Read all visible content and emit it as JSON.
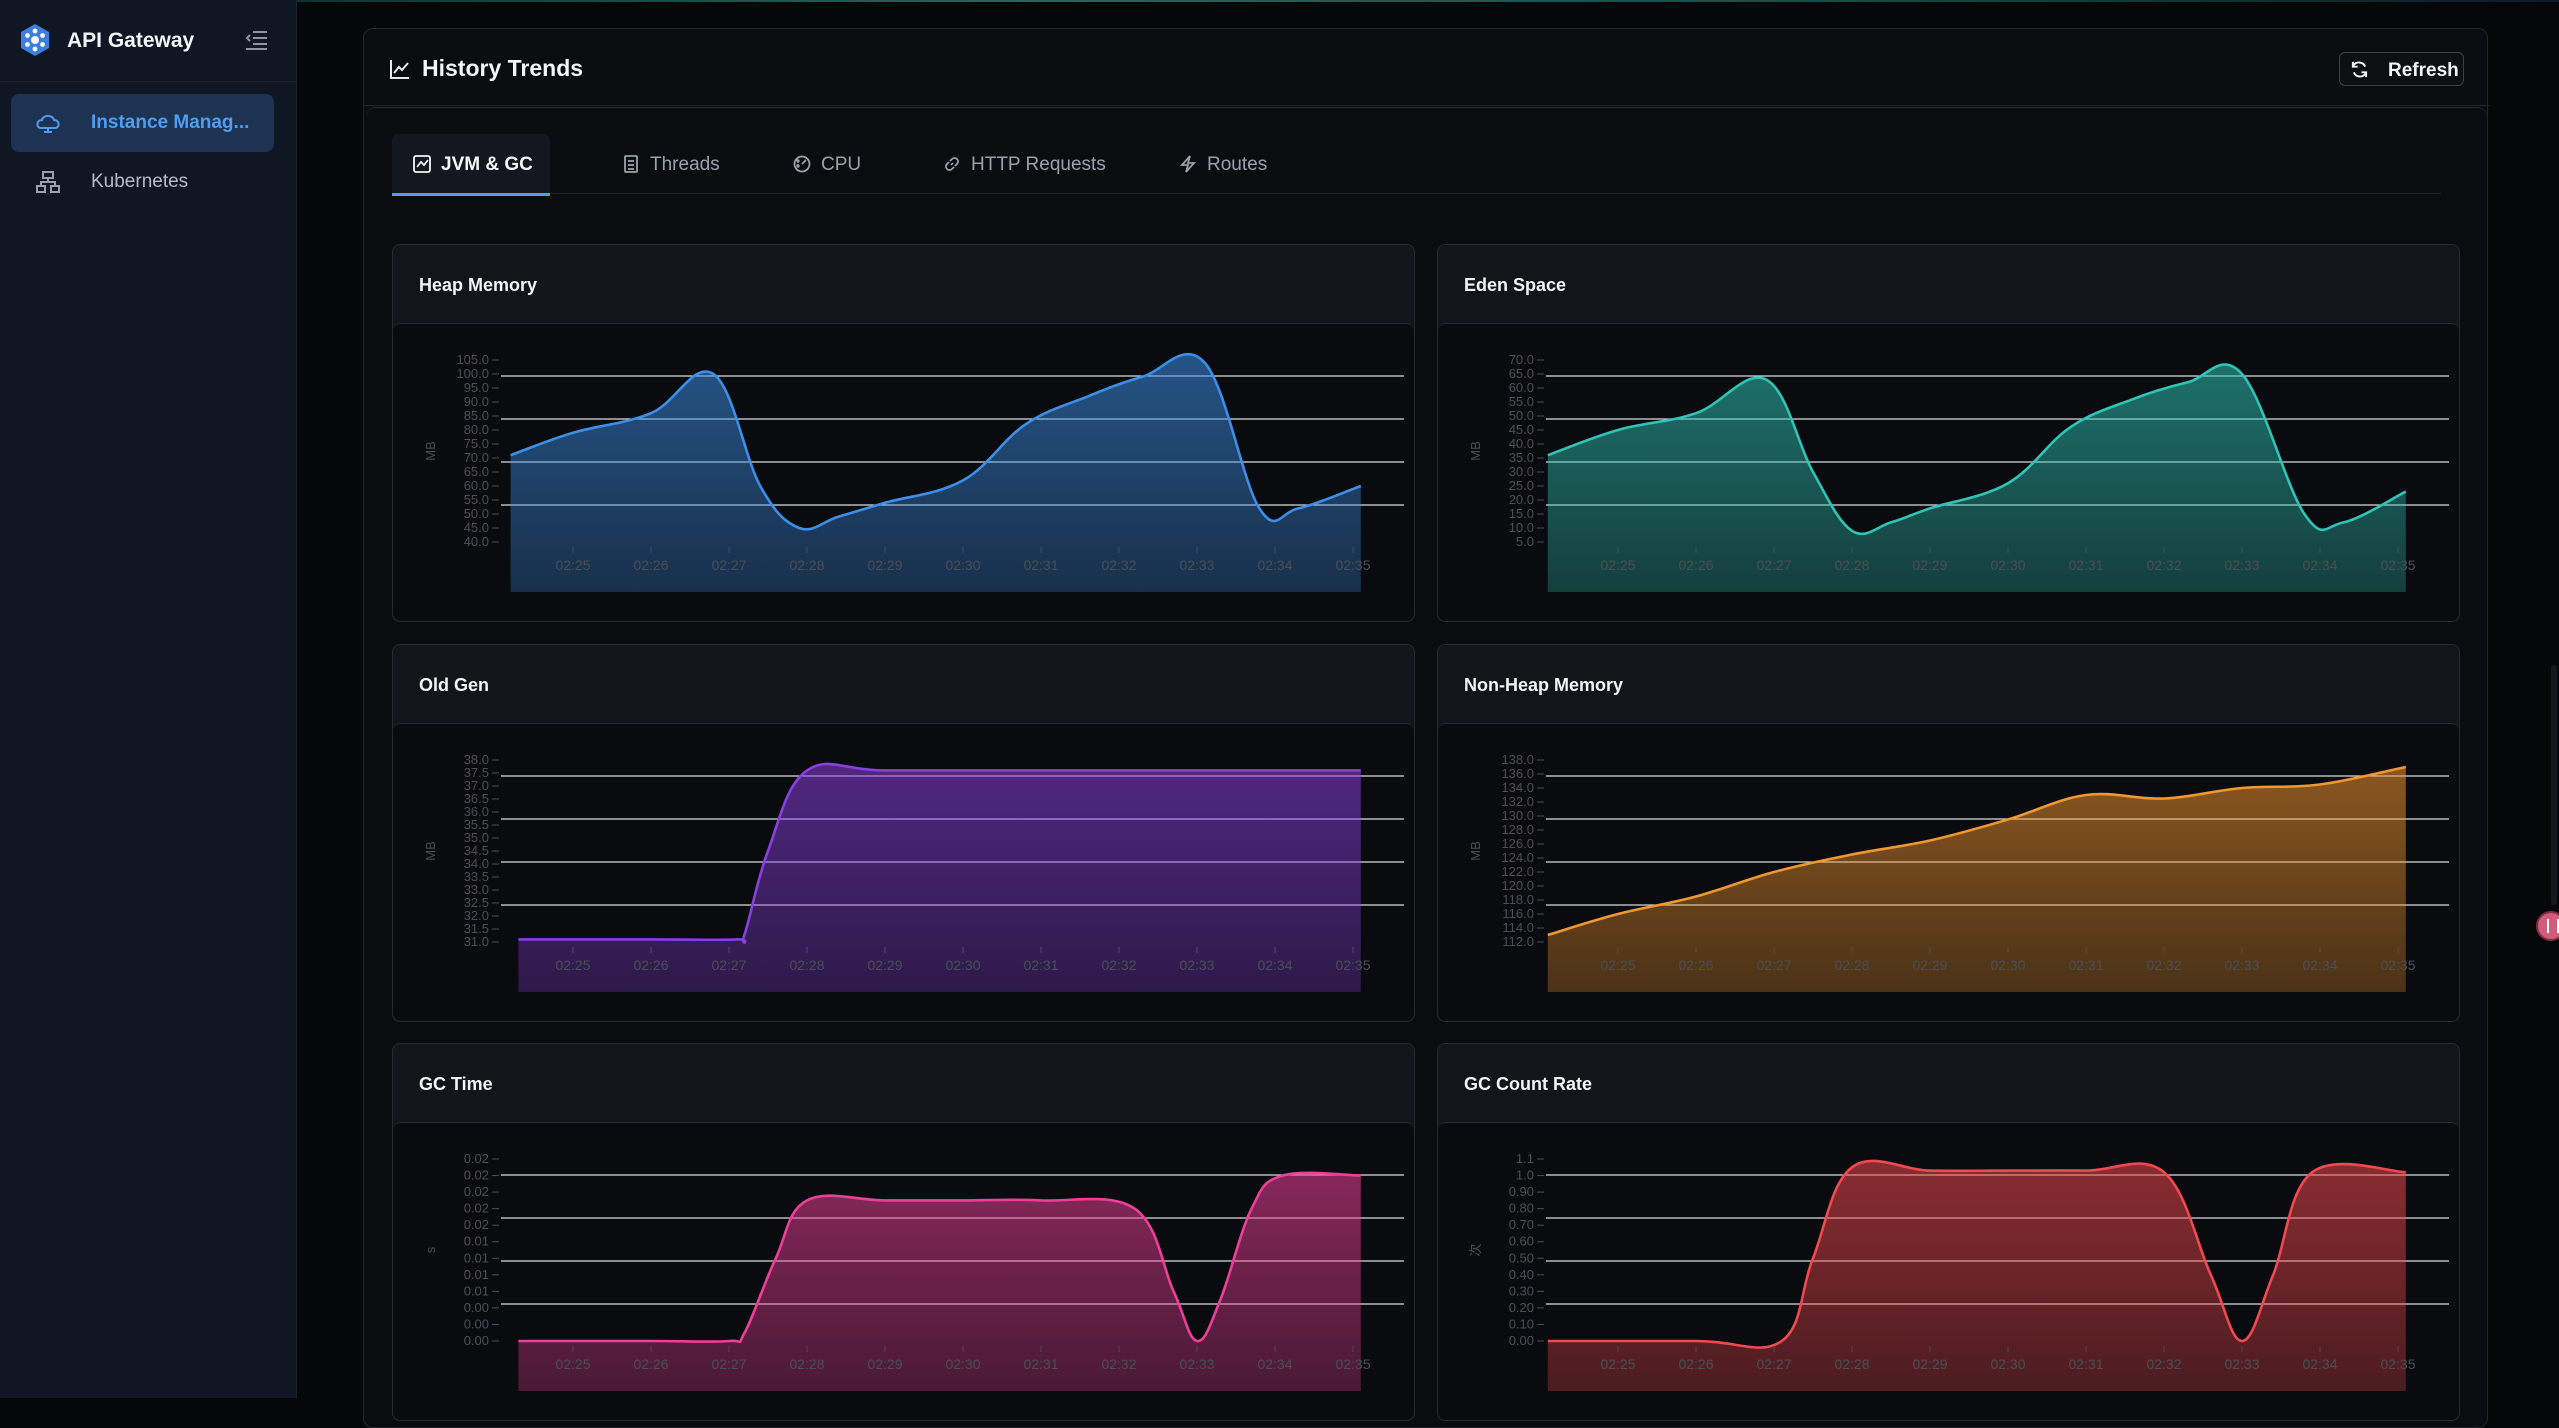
{
  "sidebar": {
    "brand_title": "API Gateway",
    "items": [
      {
        "label": "Instance Manag...",
        "icon": "cloud-icon",
        "active": true
      },
      {
        "label": "Kubernetes",
        "icon": "cluster-icon",
        "active": false
      }
    ]
  },
  "panel": {
    "title": "History Trends",
    "refresh_label": "Refresh",
    "tabs": [
      {
        "label": "JVM & GC",
        "icon": "chart-icon",
        "active": true
      },
      {
        "label": "Threads",
        "icon": "document-icon",
        "active": false
      },
      {
        "label": "CPU",
        "icon": "gauge-icon",
        "active": false
      },
      {
        "label": "HTTP Requests",
        "icon": "link-icon",
        "active": false
      },
      {
        "label": "Routes",
        "icon": "bolt-icon",
        "active": false
      }
    ]
  },
  "colors": {
    "accent": "#4f9cf2",
    "heap": "#3b8fe8",
    "eden": "#2ec4b6",
    "oldgen": "#8a3fe0",
    "nonheap": "#f2962e",
    "gctime": "#ee3f98",
    "gccount": "#f2484f"
  },
  "chart_data": [
    {
      "id": "heap",
      "title": "Heap Memory",
      "type": "area",
      "ylabel": "MB",
      "ylim": [
        40,
        105
      ],
      "yticks": [
        "40.0",
        "45.0",
        "50.0",
        "55.0",
        "60.0",
        "65.0",
        "70.0",
        "75.0",
        "80.0",
        "85.0",
        "90.0",
        "95.0",
        "100.0",
        "105.0"
      ],
      "x": [
        "02:25",
        "02:26",
        "02:27",
        "02:28",
        "02:29",
        "02:30",
        "02:31",
        "02:32",
        "02:33",
        "02:34",
        "02:35"
      ],
      "points": [
        [
          -0.8,
          71
        ],
        [
          0,
          79
        ],
        [
          1,
          86
        ],
        [
          1.8,
          100
        ],
        [
          2.4,
          60
        ],
        [
          2.9,
          45
        ],
        [
          3.4,
          49
        ],
        [
          4,
          54
        ],
        [
          5,
          62
        ],
        [
          5.8,
          82
        ],
        [
          6.6,
          92
        ],
        [
          7.3,
          99
        ],
        [
          8.1,
          104
        ],
        [
          8.8,
          52
        ],
        [
          9.3,
          52
        ],
        [
          10.1,
          60
        ]
      ],
      "series": [
        {
          "name": "",
          "color": "#3b8fe8"
        }
      ]
    },
    {
      "id": "eden",
      "title": "Eden Space",
      "type": "area",
      "ylabel": "MB",
      "ylim": [
        5,
        70
      ],
      "yticks": [
        "5.0",
        "10.0",
        "15.0",
        "20.0",
        "25.0",
        "30.0",
        "35.0",
        "40.0",
        "45.0",
        "50.0",
        "55.0",
        "60.0",
        "65.0",
        "70.0"
      ],
      "x": [
        "02:25",
        "02:26",
        "02:27",
        "02:28",
        "02:29",
        "02:30",
        "02:31",
        "02:32",
        "02:33",
        "02:34",
        "02:35"
      ],
      "points": [
        [
          -0.9,
          36
        ],
        [
          0,
          45
        ],
        [
          1,
          51
        ],
        [
          1.9,
          63
        ],
        [
          2.5,
          30
        ],
        [
          3,
          9
        ],
        [
          3.5,
          12
        ],
        [
          4,
          17
        ],
        [
          5,
          26
        ],
        [
          5.8,
          46
        ],
        [
          6.6,
          56
        ],
        [
          7.3,
          62
        ],
        [
          8,
          65
        ],
        [
          8.8,
          15
        ],
        [
          9.3,
          12
        ],
        [
          10.1,
          23
        ]
      ],
      "series": [
        {
          "name": "",
          "color": "#2ec4b6"
        }
      ]
    },
    {
      "id": "oldgen",
      "title": "Old Gen",
      "type": "area",
      "ylabel": "MB",
      "ylim": [
        31,
        38
      ],
      "yticks": [
        "31.0",
        "31.5",
        "32.0",
        "32.5",
        "33.0",
        "33.5",
        "34.0",
        "34.5",
        "35.0",
        "35.5",
        "36.0",
        "36.5",
        "37.0",
        "37.5",
        "38.0"
      ],
      "x": [
        "02:25",
        "02:26",
        "02:27",
        "02:28",
        "02:29",
        "02:30",
        "02:31",
        "02:32",
        "02:33",
        "02:34",
        "02:35"
      ],
      "points": [
        [
          -0.7,
          31.1
        ],
        [
          1.0,
          31.1
        ],
        [
          2.1,
          31.1
        ],
        [
          2.2,
          31.3
        ],
        [
          2.5,
          34.5
        ],
        [
          3,
          37.6
        ],
        [
          4,
          37.6
        ],
        [
          6,
          37.6
        ],
        [
          8,
          37.6
        ],
        [
          10.1,
          37.6
        ]
      ],
      "series": [
        {
          "name": "",
          "color": "#8a3fe0"
        }
      ]
    },
    {
      "id": "nonheap",
      "title": "Non-Heap Memory",
      "type": "area",
      "ylabel": "MB",
      "ylim": [
        112,
        138
      ],
      "yticks": [
        "112.0",
        "114.0",
        "116.0",
        "118.0",
        "120.0",
        "122.0",
        "124.0",
        "126.0",
        "128.0",
        "130.0",
        "132.0",
        "134.0",
        "136.0",
        "138.0"
      ],
      "x": [
        "02:25",
        "02:26",
        "02:27",
        "02:28",
        "02:29",
        "02:30",
        "02:31",
        "02:32",
        "02:33",
        "02:34",
        "02:35"
      ],
      "points": [
        [
          -0.9,
          113
        ],
        [
          0,
          116
        ],
        [
          1,
          118.5
        ],
        [
          2,
          122
        ],
        [
          3,
          124.5
        ],
        [
          4,
          126.5
        ],
        [
          5,
          129.5
        ],
        [
          6,
          133
        ],
        [
          7,
          132.5
        ],
        [
          8,
          134
        ],
        [
          9,
          134.5
        ],
        [
          10.1,
          137
        ]
      ],
      "series": [
        {
          "name": "",
          "color": "#f2962e"
        }
      ]
    },
    {
      "id": "gctime",
      "title": "GC Time",
      "type": "area",
      "ylabel": "s",
      "ylim": [
        0,
        0.022
      ],
      "yticks": [
        "0.00",
        "0.00",
        "0.00",
        "0.01",
        "0.01",
        "0.01",
        "0.01",
        "0.02",
        "0.02",
        "0.02",
        "0.02",
        "0.02"
      ],
      "x": [
        "02:25",
        "02:26",
        "02:27",
        "02:28",
        "02:29",
        "02:30",
        "02:31",
        "02:32",
        "02:33",
        "02:34",
        "02:35"
      ],
      "points": [
        [
          -0.7,
          0
        ],
        [
          1,
          0
        ],
        [
          2,
          0
        ],
        [
          2.2,
          0.001
        ],
        [
          2.6,
          0.01
        ],
        [
          3,
          0.017
        ],
        [
          4,
          0.017
        ],
        [
          5,
          0.017
        ],
        [
          6,
          0.017
        ],
        [
          7.2,
          0.016
        ],
        [
          7.7,
          0.006
        ],
        [
          8,
          0.0
        ],
        [
          8.3,
          0.005
        ],
        [
          8.7,
          0.016
        ],
        [
          9.1,
          0.02
        ],
        [
          10.1,
          0.02
        ]
      ],
      "series": [
        {
          "name": "",
          "color": "#ee3f98"
        }
      ]
    },
    {
      "id": "gccount",
      "title": "GC Count Rate",
      "type": "area",
      "ylabel": "次",
      "ylim": [
        0,
        1.1
      ],
      "yticks": [
        "0.00",
        "0.10",
        "0.20",
        "0.30",
        "0.40",
        "0.50",
        "0.60",
        "0.70",
        "0.80",
        "0.90",
        "1.0",
        "1.1"
      ],
      "x": [
        "02:25",
        "02:26",
        "02:27",
        "02:28",
        "02:29",
        "02:30",
        "02:31",
        "02:32",
        "02:33",
        "02:34",
        "02:35"
      ],
      "points": [
        [
          -0.9,
          0
        ],
        [
          1,
          0
        ],
        [
          2.1,
          0
        ],
        [
          2.5,
          0.5
        ],
        [
          3,
          1.05
        ],
        [
          4,
          1.03
        ],
        [
          5,
          1.03
        ],
        [
          6,
          1.03
        ],
        [
          7,
          1.02
        ],
        [
          7.6,
          0.4
        ],
        [
          8,
          0
        ],
        [
          8.4,
          0.4
        ],
        [
          8.9,
          1.02
        ],
        [
          10.1,
          1.02
        ]
      ],
      "series": [
        {
          "name": "",
          "color": "#f2484f"
        }
      ]
    }
  ]
}
